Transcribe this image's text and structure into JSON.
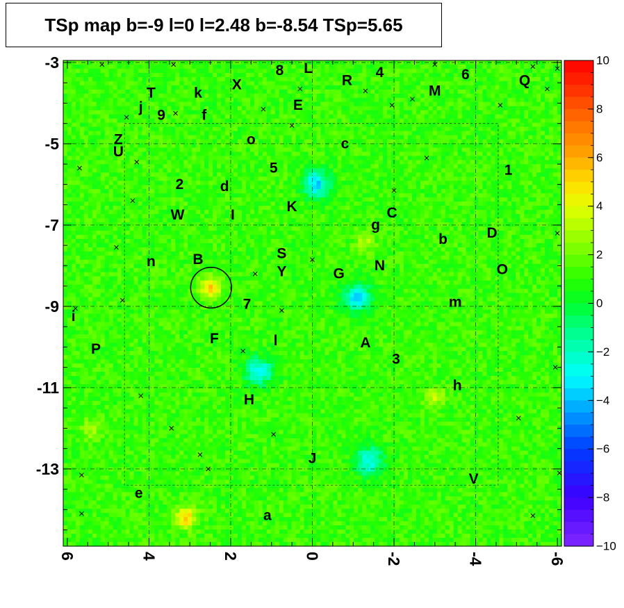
{
  "title": "TSp map b=-9 l=0 l=2.48 b=-8.54 TSp=5.65",
  "chart_data": {
    "type": "heatmap",
    "title": "TSp map b=-9 l=0 l=2.48 b=-8.54 TSp=5.65",
    "xlabel": "",
    "ylabel": "",
    "xlim": [
      6.1,
      -6.1
    ],
    "ylim": [
      -14.9,
      -2.95
    ],
    "x_ticks": [
      6,
      4,
      2,
      0,
      -2,
      -4,
      -6
    ],
    "x_tick_labels": [
      "6",
      "4",
      "2",
      "0",
      "-2",
      "-4",
      "-6"
    ],
    "y_ticks": [
      -3,
      -5,
      -7,
      -9,
      -11,
      -13
    ],
    "y_tick_labels": [
      "-3",
      "-5",
      "-7",
      "-9",
      "-11",
      "-13"
    ],
    "z_range": [
      -10,
      10
    ],
    "colorbar_ticks": [
      10,
      8,
      6,
      4,
      2,
      0,
      -2,
      -4,
      -6,
      -8,
      -10
    ],
    "colorbar_tick_labels": [
      "10",
      "8",
      "6",
      "4",
      "2",
      "0",
      "−2",
      "−4",
      "−6",
      "−8",
      "−10"
    ],
    "grid": true,
    "background_level": 1.2,
    "hotspots": [
      {
        "l": 3.1,
        "b": -14.2,
        "value": 5.5
      },
      {
        "l": 2.5,
        "b": -8.55,
        "value": 5.65
      },
      {
        "l": -3.0,
        "b": -11.2,
        "value": 3.5
      },
      {
        "l": -1.3,
        "b": -7.4,
        "value": 3.0
      },
      {
        "l": 5.4,
        "b": -12.0,
        "value": 3.0
      }
    ],
    "coldspots": [
      {
        "l": -0.1,
        "b": -6.0,
        "value": -3.5
      },
      {
        "l": 1.3,
        "b": -10.6,
        "value": -3.0
      },
      {
        "l": -1.1,
        "b": -8.8,
        "value": -3.5
      },
      {
        "l": -1.4,
        "b": -12.8,
        "value": -3.0
      }
    ],
    "circle": {
      "l": 2.48,
      "b": -8.54,
      "radius": 0.5
    },
    "sources": [
      {
        "label": "T",
        "l": 3.95,
        "b": -3.75
      },
      {
        "label": "k",
        "l": 2.8,
        "b": -3.75
      },
      {
        "label": "X",
        "l": 1.85,
        "b": -3.55
      },
      {
        "label": "8",
        "l": 0.8,
        "b": -3.2
      },
      {
        "label": "L",
        "l": 0.1,
        "b": -3.15
      },
      {
        "label": "R",
        "l": -0.85,
        "b": -3.45
      },
      {
        "label": "4",
        "l": -1.65,
        "b": -3.25
      },
      {
        "label": "6",
        "l": -3.75,
        "b": -3.3
      },
      {
        "label": "Q",
        "l": -5.2,
        "b": -3.45
      },
      {
        "label": "M",
        "l": -3.0,
        "b": -3.7
      },
      {
        "label": "j",
        "l": 4.2,
        "b": -4.1
      },
      {
        "label": "9",
        "l": 3.7,
        "b": -4.3
      },
      {
        "label": "f",
        "l": 2.65,
        "b": -4.3
      },
      {
        "label": "E",
        "l": 0.35,
        "b": -4.05
      },
      {
        "label": "o",
        "l": 1.5,
        "b": -4.9
      },
      {
        "label": "c",
        "l": -0.8,
        "b": -5.0
      },
      {
        "label": "Z",
        "l": 4.75,
        "b": -4.9
      },
      {
        "label": "U",
        "l": 4.75,
        "b": -5.2
      },
      {
        "label": "5",
        "l": 0.95,
        "b": -5.6
      },
      {
        "label": "1",
        "l": -4.8,
        "b": -5.65
      },
      {
        "label": "2",
        "l": 3.25,
        "b": -6.0
      },
      {
        "label": "d",
        "l": 2.15,
        "b": -6.05
      },
      {
        "label": "K",
        "l": 0.5,
        "b": -6.55
      },
      {
        "label": "W",
        "l": 3.3,
        "b": -6.75
      },
      {
        "label": "I",
        "l": 1.95,
        "b": -6.75
      },
      {
        "label": "C",
        "l": -1.95,
        "b": -6.7
      },
      {
        "label": "g",
        "l": -1.55,
        "b": -7.0
      },
      {
        "label": "D",
        "l": -4.4,
        "b": -7.2
      },
      {
        "label": "b",
        "l": -3.2,
        "b": -7.35
      },
      {
        "label": "n",
        "l": 3.95,
        "b": -7.9
      },
      {
        "label": "B",
        "l": 2.8,
        "b": -7.85
      },
      {
        "label": "S",
        "l": 0.75,
        "b": -7.7
      },
      {
        "label": "N",
        "l": -1.65,
        "b": -8.0
      },
      {
        "label": "Y",
        "l": 0.75,
        "b": -8.15
      },
      {
        "label": "G",
        "l": -0.65,
        "b": -8.2
      },
      {
        "label": "O",
        "l": -4.65,
        "b": -8.1
      },
      {
        "label": "7",
        "l": 1.6,
        "b": -8.95
      },
      {
        "label": "m",
        "l": -3.5,
        "b": -8.9
      },
      {
        "label": "i",
        "l": 5.85,
        "b": -9.25
      },
      {
        "label": "F",
        "l": 2.4,
        "b": -9.8
      },
      {
        "label": "l",
        "l": 0.9,
        "b": -9.85
      },
      {
        "label": "A",
        "l": -1.3,
        "b": -9.9
      },
      {
        "label": "P",
        "l": 5.3,
        "b": -10.05
      },
      {
        "label": "3",
        "l": -2.05,
        "b": -10.3
      },
      {
        "label": "h",
        "l": -3.55,
        "b": -10.95
      },
      {
        "label": "H",
        "l": 1.55,
        "b": -11.3
      },
      {
        "label": "J",
        "l": 0.0,
        "b": -12.75
      },
      {
        "label": "V",
        "l": -3.95,
        "b": -13.25
      },
      {
        "label": "e",
        "l": 4.25,
        "b": -13.6
      },
      {
        "label": "a",
        "l": 1.1,
        "b": -14.15
      }
    ],
    "crosses": [
      {
        "l": 5.15,
        "b": -3.05
      },
      {
        "l": 3.4,
        "b": -3.05
      },
      {
        "l": -3.0,
        "b": -3.05
      },
      {
        "l": -5.4,
        "b": -3.1
      },
      {
        "l": -6.0,
        "b": -3.15
      },
      {
        "l": 0.3,
        "b": -3.65
      },
      {
        "l": -1.3,
        "b": -3.7
      },
      {
        "l": -2.45,
        "b": -3.9
      },
      {
        "l": -5.75,
        "b": -3.65
      },
      {
        "l": 3.35,
        "b": -4.25
      },
      {
        "l": 1.2,
        "b": -4.15
      },
      {
        "l": -1.95,
        "b": -4.05
      },
      {
        "l": 4.55,
        "b": -4.35
      },
      {
        "l": 0.5,
        "b": -4.55
      },
      {
        "l": -4.6,
        "b": -4.05
      },
      {
        "l": 5.7,
        "b": -5.6
      },
      {
        "l": 4.3,
        "b": -5.45
      },
      {
        "l": -2.8,
        "b": -5.35
      },
      {
        "l": -2.0,
        "b": -6.15
      },
      {
        "l": 4.4,
        "b": -6.4
      },
      {
        "l": 1.4,
        "b": -8.2
      },
      {
        "l": 0.0,
        "b": -7.85
      },
      {
        "l": 4.8,
        "b": -7.55
      },
      {
        "l": -6.0,
        "b": -7.2
      },
      {
        "l": 4.65,
        "b": -8.85
      },
      {
        "l": 0.75,
        "b": -9.1
      },
      {
        "l": 5.8,
        "b": -9.05
      },
      {
        "l": 1.7,
        "b": -10.1
      },
      {
        "l": -5.95,
        "b": -10.5
      },
      {
        "l": 4.2,
        "b": -11.2
      },
      {
        "l": 3.45,
        "b": -12.0
      },
      {
        "l": 0.95,
        "b": -12.15
      },
      {
        "l": -5.05,
        "b": -11.75
      },
      {
        "l": 2.75,
        "b": -12.65
      },
      {
        "l": 2.55,
        "b": -13.0
      },
      {
        "l": 5.65,
        "b": -13.15
      },
      {
        "l": -6.05,
        "b": -13.1
      },
      {
        "l": 5.65,
        "b": -14.1
      },
      {
        "l": -5.4,
        "b": -14.15
      }
    ]
  }
}
